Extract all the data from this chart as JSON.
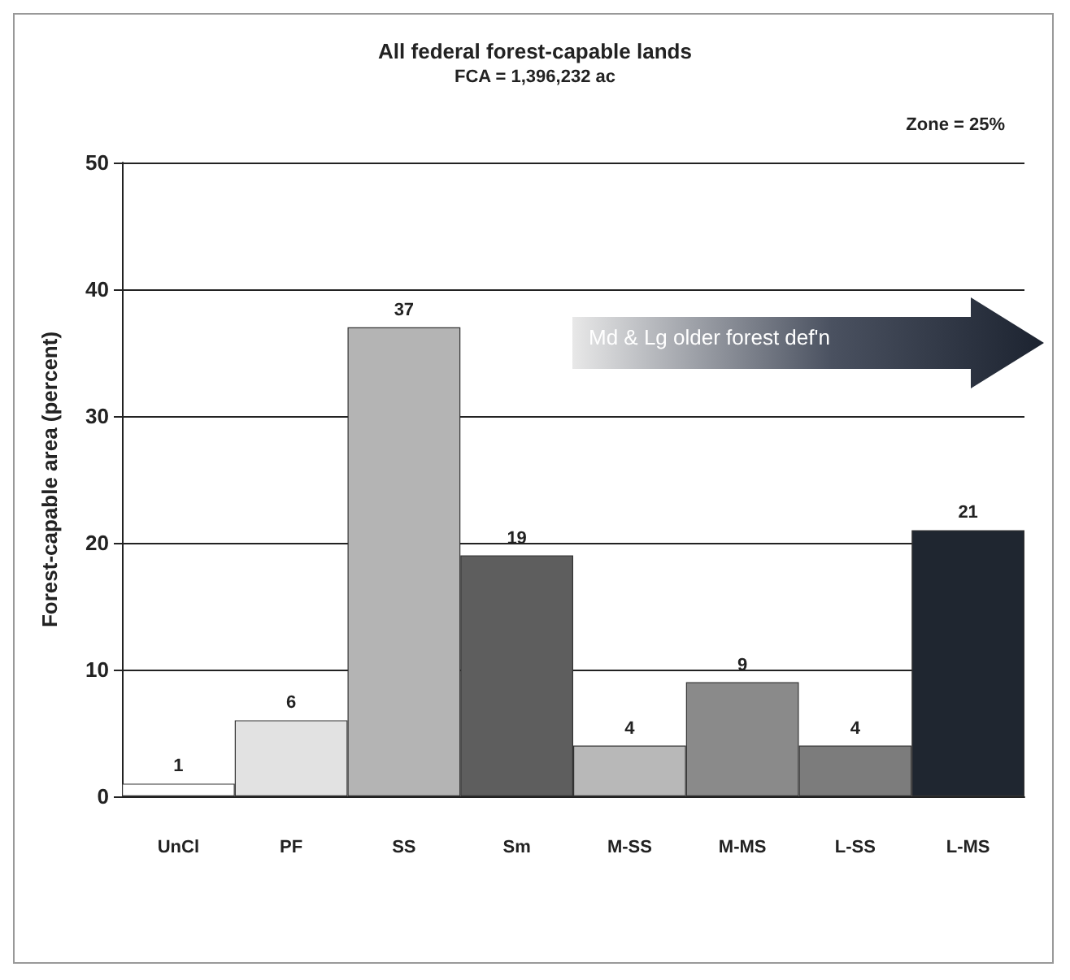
{
  "chart_data": {
    "type": "bar",
    "title": "All federal forest-capable lands",
    "subtitle": "FCA = 1,396,232 ac",
    "ylabel": "Forest-capable area (percent)",
    "categories": [
      "UnCl",
      "PF",
      "SS",
      "Sm",
      "M-SS",
      "M-MS",
      "L-SS",
      "L-MS"
    ],
    "values": [
      1,
      6,
      37,
      19,
      4,
      9,
      4,
      21
    ],
    "colors": [
      "#ffffff",
      "#e2e2e2",
      "#b4b4b4",
      "#5e5e5e",
      "#b8b8b8",
      "#8a8a8a",
      "#7c7c7c",
      "#1f2630"
    ],
    "ylim": [
      0,
      50
    ],
    "yticks": [
      0,
      10,
      20,
      30,
      40,
      50
    ],
    "grid": "y",
    "data_labels": true,
    "annotations": [
      "Zone = 25%",
      "Md & Lg older forest def'n"
    ]
  }
}
